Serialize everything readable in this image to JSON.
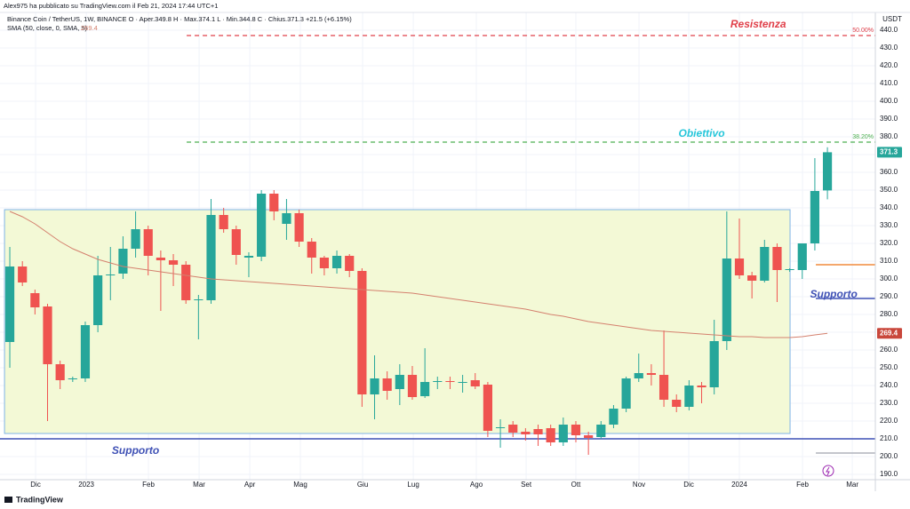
{
  "chart_data": {
    "type": "candlestick",
    "title": "Alex975 ha pubblicato su TradingView.com il Feb 21, 2024 17:44 UTC+1",
    "subtitle": "Binance Coin / TetherUS, 1W, BINANCE  O · Aper.349.8  H · Max.374.1  L · Min.344.8  C · Chius.371.3  +21.5 (+6.15%)",
    "currency": "USDT",
    "footer": "TradingView",
    "categories": [
      null,
      null,
      null,
      null,
      null,
      null,
      null,
      null,
      null,
      null,
      null,
      null,
      null,
      null,
      null,
      null,
      null,
      null,
      null,
      null,
      null,
      null,
      null,
      null,
      null,
      null,
      null,
      null,
      null,
      null,
      null,
      null,
      null,
      null,
      null,
      null,
      null,
      null,
      null,
      null,
      null,
      null,
      null,
      null,
      null,
      null,
      null,
      null,
      null,
      null,
      null,
      null,
      null,
      null,
      null,
      null,
      null,
      null,
      null,
      null,
      null,
      null,
      null,
      null,
      null,
      null
    ],
    "open": [
      264.5,
      307,
      292,
      284.5,
      252,
      243.5,
      244,
      274,
      302,
      303,
      317,
      328,
      312,
      310.5,
      308,
      288,
      288,
      336,
      328,
      312,
      312.5,
      348,
      331,
      337,
      321,
      312,
      306,
      313,
      304.5,
      235,
      244,
      238,
      246,
      234,
      242,
      242.5,
      241.5,
      243,
      240.5,
      216,
      218,
      214,
      215.5,
      216,
      208,
      218,
      212,
      211,
      218,
      227,
      244,
      247,
      246,
      232,
      228,
      240,
      239,
      265,
      311.5,
      302,
      299,
      318,
      305,
      305,
      320,
      349.8
    ],
    "high": [
      318,
      310,
      294,
      286,
      254,
      245,
      276,
      313,
      318,
      324,
      338,
      330,
      316,
      314,
      310,
      291,
      345,
      340,
      330,
      315,
      350,
      350,
      345,
      339,
      323,
      313,
      316,
      314,
      306,
      257,
      248,
      252,
      251,
      261,
      245,
      245,
      246,
      247,
      242,
      221,
      220,
      216,
      218,
      218,
      222,
      220,
      214,
      220,
      229,
      245,
      258,
      252,
      271,
      235,
      243,
      242,
      277,
      338,
      334,
      304,
      322,
      320,
      306,
      320,
      368,
      374.1
    ],
    "low": [
      250,
      296,
      280,
      220,
      238,
      242,
      242,
      270,
      288,
      300,
      312,
      302,
      282,
      296,
      286,
      266,
      286,
      326,
      308,
      301,
      310,
      333,
      322,
      318,
      303,
      302,
      303,
      301,
      228,
      221,
      232,
      229,
      232,
      233,
      238,
      238,
      236,
      238,
      211,
      205,
      211,
      209,
      206,
      206,
      206,
      208,
      201,
      210,
      216,
      225,
      242,
      240,
      228,
      225,
      226,
      230,
      235,
      260,
      300,
      289,
      298,
      287,
      304,
      300,
      316,
      344.8
    ],
    "close": [
      307,
      298,
      284,
      252,
      243,
      244,
      274,
      302,
      302.5,
      317,
      328,
      313,
      310.5,
      308,
      288,
      288.5,
      336,
      328,
      313.5,
      313,
      348,
      338,
      337,
      321,
      312,
      306,
      313,
      304.5,
      235,
      244,
      237,
      246,
      233.5,
      242,
      242.5,
      242,
      242,
      239.5,
      214.5,
      216.5,
      213.5,
      212.5,
      212.5,
      208,
      218,
      212,
      210.5,
      218,
      227,
      244,
      247,
      246,
      232,
      228,
      240,
      239,
      265,
      311.5,
      302,
      299,
      318,
      305,
      305.5,
      320,
      349.5,
      371.3
    ],
    "up_color": "#26a69a",
    "down_color": "#ef5350",
    "series": [
      {
        "name": "SMA (50, close, 0, SMA, 5)",
        "color": "#d4806e",
        "values": [
          338,
          335,
          331,
          326,
          321,
          317,
          314,
          311,
          309,
          307,
          306,
          305,
          304,
          303,
          302,
          301,
          300,
          299.5,
          299,
          298.5,
          298,
          297.5,
          297,
          296.5,
          296,
          295.5,
          295,
          294.5,
          294,
          293.5,
          293,
          292.5,
          292,
          291,
          290,
          289,
          288,
          287,
          286,
          285,
          284,
          283,
          281.5,
          280,
          279,
          277.5,
          276,
          275,
          274,
          273,
          272,
          271,
          270.5,
          270,
          269.5,
          269,
          268.5,
          268,
          267.5,
          267.5,
          267,
          267,
          267,
          267.5,
          268.5,
          269.4
        ]
      }
    ],
    "xlim": [
      -0.78,
      68.81
    ],
    "xticks": [
      {
        "value": 2.05,
        "label": "Dic"
      },
      {
        "value": 6.08,
        "label": "2023"
      },
      {
        "value": 11.02,
        "label": "Feb"
      },
      {
        "value": 15.05,
        "label": "Mar"
      },
      {
        "value": 19.08,
        "label": "Apr"
      },
      {
        "value": 23.1,
        "label": "Mag"
      },
      {
        "value": 28.05,
        "label": "Giu"
      },
      {
        "value": 32.08,
        "label": "Lug"
      },
      {
        "value": 37.09,
        "label": "Ago"
      },
      {
        "value": 41.05,
        "label": "Set"
      },
      {
        "value": 45.0,
        "label": "Ott"
      },
      {
        "value": 50.02,
        "label": "Nov"
      },
      {
        "value": 53.98,
        "label": "Dic"
      },
      {
        "value": 58.0,
        "label": "2024"
      },
      {
        "value": 63.02,
        "label": "Feb"
      },
      {
        "value": 66.98,
        "label": "Mar"
      }
    ],
    "ylim": [
      187,
      450
    ],
    "yticks": [
      {
        "value": 190,
        "label": "190.0"
      },
      {
        "value": 200,
        "label": "200.0"
      },
      {
        "value": 210,
        "label": "210.0"
      },
      {
        "value": 220,
        "label": "220.0"
      },
      {
        "value": 230,
        "label": "230.0"
      },
      {
        "value": 240,
        "label": "240.0"
      },
      {
        "value": 250,
        "label": "250.0"
      },
      {
        "value": 260,
        "label": "260.0"
      },
      {
        "value": 270,
        "label": "270.0"
      },
      {
        "value": 280,
        "label": "280.0"
      },
      {
        "value": 290,
        "label": "290.0"
      },
      {
        "value": 300,
        "label": "300.0"
      },
      {
        "value": 310,
        "label": "310.0"
      },
      {
        "value": 320,
        "label": "320.0"
      },
      {
        "value": 330,
        "label": "330.0"
      },
      {
        "value": 340,
        "label": "340.0"
      },
      {
        "value": 350,
        "label": "350.0"
      },
      {
        "value": 360,
        "label": "360.0"
      },
      {
        "value": 370,
        "label": "370.0"
      },
      {
        "value": 380,
        "label": "380.0"
      },
      {
        "value": 390,
        "label": "390.0"
      },
      {
        "value": 400,
        "label": "400.0"
      },
      {
        "value": 410,
        "label": "410.0"
      },
      {
        "value": 420,
        "label": "420.0"
      },
      {
        "value": 430,
        "label": "430.0"
      },
      {
        "value": 440,
        "label": "440.0"
      }
    ],
    "grid": true,
    "zone": {
      "x": [
        -0.42,
        62.03
      ],
      "y": [
        213,
        339
      ],
      "color": "#f3f9d6",
      "border": "#7fb3e6"
    },
    "levels": [
      {
        "value": 437,
        "x": [
          14.06,
          69
        ],
        "color": "#e0404a",
        "style": "dashed",
        "label": "50.00%"
      },
      {
        "value": 377,
        "x": [
          14.06,
          69
        ],
        "color": "#4caf50",
        "style": "dashed",
        "label": "38.20%"
      },
      {
        "value": 210,
        "x": [
          -0.78,
          69
        ],
        "color": "#3f51b5",
        "style": "solid"
      },
      {
        "value": 308,
        "x": [
          64.08,
          69
        ],
        "color": "#f08a3c",
        "style": "solid"
      },
      {
        "value": 289,
        "x": [
          64.08,
          69
        ],
        "color": "#3f51b5",
        "style": "solid"
      },
      {
        "value": 202,
        "x": [
          64.08,
          69
        ],
        "color": "#b0b3bb",
        "style": "solid"
      }
    ],
    "annotations": [
      {
        "text": "Resistenza",
        "x": 59.5,
        "y": 443,
        "color": "#e0404a"
      },
      {
        "text": "Obiettivo",
        "x": 55,
        "y": 381.5,
        "color": "#26c6da"
      },
      {
        "text": "Supporto",
        "x": 65.5,
        "y": 291,
        "color": "#3f51b5"
      },
      {
        "text": "Supporto",
        "x": 10,
        "y": 203,
        "color": "#3f51b5"
      }
    ]
  }
}
